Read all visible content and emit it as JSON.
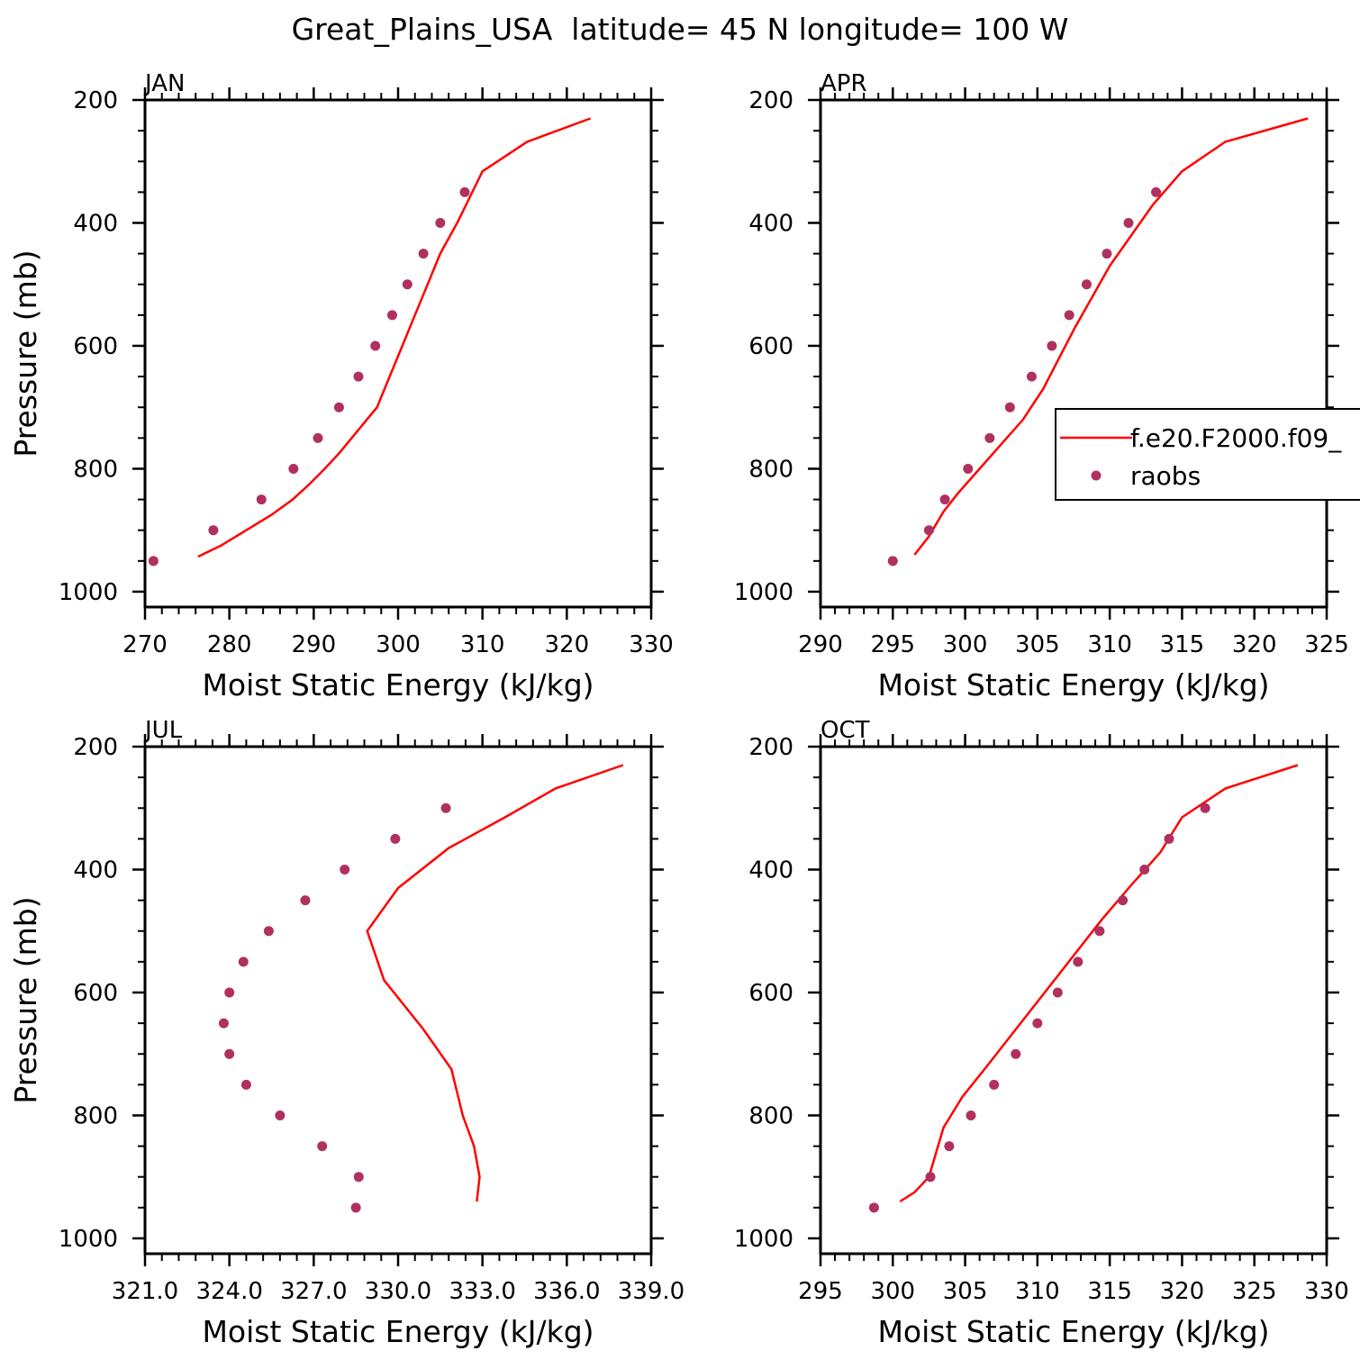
{
  "figure": {
    "title": "Great_Plains_USA  latitude= 45 N longitude= 100 W"
  },
  "legend": {
    "model_label": "f.e20.F2000.f09_",
    "obs_label": "raobs"
  },
  "colors": {
    "model_line": "#ff0000",
    "obs_marker": "#b03060",
    "axis": "#000000"
  },
  "chart_data": [
    {
      "type": "line",
      "title": "JAN",
      "xlabel": "Moist Static Energy (kJ/kg)",
      "ylabel": "Pressure (mb)",
      "xlim": [
        270,
        330
      ],
      "ylim": [
        1025,
        200
      ],
      "xticks": [
        270,
        280,
        290,
        300,
        310,
        320,
        330
      ],
      "xtick_labels": [
        "270",
        "280",
        "290",
        "300",
        "310",
        "320",
        "330"
      ],
      "yticks": [
        200,
        400,
        600,
        800,
        1000
      ],
      "ytick_labels": [
        "200",
        "400",
        "600",
        "800",
        "1000"
      ],
      "grid": false,
      "series": [
        {
          "name": "f.e20.F2000.f09_",
          "style": "line",
          "x": [
            276.3,
            279,
            282,
            285,
            287.5,
            289.5,
            291.3,
            293,
            294.5,
            296,
            297.5,
            299,
            300.5,
            302,
            303.5,
            305,
            307,
            310,
            315.3,
            322.8
          ],
          "y": [
            943,
            925,
            900,
            875,
            850,
            825,
            800,
            775,
            750,
            725,
            700,
            650,
            600,
            550,
            500,
            450,
            400,
            316,
            268,
            230
          ]
        },
        {
          "name": "raobs",
          "style": "marker",
          "x": [
            271,
            278.1,
            283.8,
            287.6,
            290.5,
            293,
            295.3,
            297.3,
            299.3,
            301.1,
            303,
            305,
            307.9
          ],
          "y": [
            950,
            900,
            850,
            800,
            750,
            700,
            650,
            600,
            550,
            500,
            450,
            400,
            350
          ]
        }
      ]
    },
    {
      "type": "line",
      "title": "APR",
      "xlabel": "Moist Static Energy (kJ/kg)",
      "ylabel": "",
      "xlim": [
        290,
        325
      ],
      "ylim": [
        1025,
        200
      ],
      "xticks": [
        290,
        295,
        300,
        305,
        310,
        315,
        320,
        325
      ],
      "xtick_labels": [
        "290",
        "295",
        "300",
        "305",
        "310",
        "315",
        "320",
        "325"
      ],
      "yticks": [
        200,
        400,
        600,
        800,
        1000
      ],
      "ytick_labels": [
        "200",
        "400",
        "600",
        "800",
        "1000"
      ],
      "grid": false,
      "legend_position": "right",
      "series": [
        {
          "name": "f.e20.F2000.f09_",
          "style": "line",
          "x": [
            296.5,
            297.5,
            298.5,
            299.5,
            301,
            302.5,
            304,
            305.4,
            306.5,
            307.6,
            308.8,
            310,
            311.5,
            313,
            315,
            318,
            323.7
          ],
          "y": [
            940,
            910,
            870,
            840,
            800,
            760,
            720,
            670,
            620,
            570,
            520,
            470,
            420,
            370,
            316,
            268,
            230
          ]
        },
        {
          "name": "raobs",
          "style": "marker",
          "x": [
            295,
            297.5,
            298.6,
            300.2,
            301.7,
            303.1,
            304.6,
            306,
            307.2,
            308.4,
            309.8,
            311.3,
            313.2
          ],
          "y": [
            950,
            900,
            850,
            800,
            750,
            700,
            650,
            600,
            550,
            500,
            450,
            400,
            350
          ]
        }
      ]
    },
    {
      "type": "line",
      "title": "JUL",
      "xlabel": "Moist Static Energy (kJ/kg)",
      "ylabel": "Pressure (mb)",
      "xlim": [
        321,
        339
      ],
      "ylim": [
        1025,
        200
      ],
      "xticks": [
        321,
        324,
        327,
        330,
        333,
        336,
        339
      ],
      "xtick_labels": [
        "321.0",
        "324.0",
        "327.0",
        "330.0",
        "333.0",
        "336.0",
        "339.0"
      ],
      "yticks": [
        200,
        400,
        600,
        800,
        1000
      ],
      "ytick_labels": [
        "200",
        "400",
        "600",
        "800",
        "1000"
      ],
      "grid": false,
      "series": [
        {
          "name": "f.e20.F2000.f09_",
          "style": "line",
          "x": [
            332.8,
            332.9,
            332.7,
            332.3,
            331.9,
            330.9,
            329.5,
            328.9,
            330,
            331.8,
            333.8,
            335.6,
            338
          ],
          "y": [
            940,
            900,
            850,
            800,
            725,
            660,
            580,
            500,
            430,
            365,
            315,
            268,
            230
          ]
        },
        {
          "name": "raobs",
          "style": "marker",
          "x": [
            328.5,
            328.6,
            327.3,
            325.8,
            324.6,
            324,
            323.8,
            324,
            324.5,
            325.4,
            326.7,
            328.1,
            329.9,
            331.7
          ],
          "y": [
            950,
            900,
            850,
            800,
            750,
            700,
            650,
            600,
            550,
            500,
            450,
            400,
            350,
            300
          ]
        }
      ]
    },
    {
      "type": "line",
      "title": "OCT",
      "xlabel": "Moist Static Energy (kJ/kg)",
      "ylabel": "",
      "xlim": [
        295,
        330
      ],
      "ylim": [
        1025,
        200
      ],
      "xticks": [
        295,
        300,
        305,
        310,
        315,
        320,
        325,
        330
      ],
      "xtick_labels": [
        "295",
        "300",
        "305",
        "310",
        "315",
        "320",
        "325",
        "330"
      ],
      "yticks": [
        200,
        400,
        600,
        800,
        1000
      ],
      "ytick_labels": [
        "200",
        "400",
        "600",
        "800",
        "1000"
      ],
      "grid": false,
      "series": [
        {
          "name": "f.e20.F2000.f09_",
          "style": "line",
          "x": [
            300.5,
            301.5,
            302.5,
            303.5,
            304.8,
            306.5,
            308.5,
            310.5,
            312.5,
            314.5,
            316.5,
            318.5,
            320,
            323,
            328
          ],
          "y": [
            940,
            925,
            900,
            820,
            770,
            720,
            660,
            600,
            540,
            480,
            425,
            372,
            315,
            268,
            230
          ]
        },
        {
          "name": "raobs",
          "style": "marker",
          "x": [
            298.7,
            302.6,
            303.9,
            305.4,
            307,
            308.5,
            310,
            311.4,
            312.8,
            314.3,
            315.9,
            317.4,
            319.1,
            321.6
          ],
          "y": [
            950,
            900,
            850,
            800,
            750,
            700,
            650,
            600,
            550,
            500,
            450,
            400,
            350,
            300
          ]
        }
      ]
    }
  ]
}
